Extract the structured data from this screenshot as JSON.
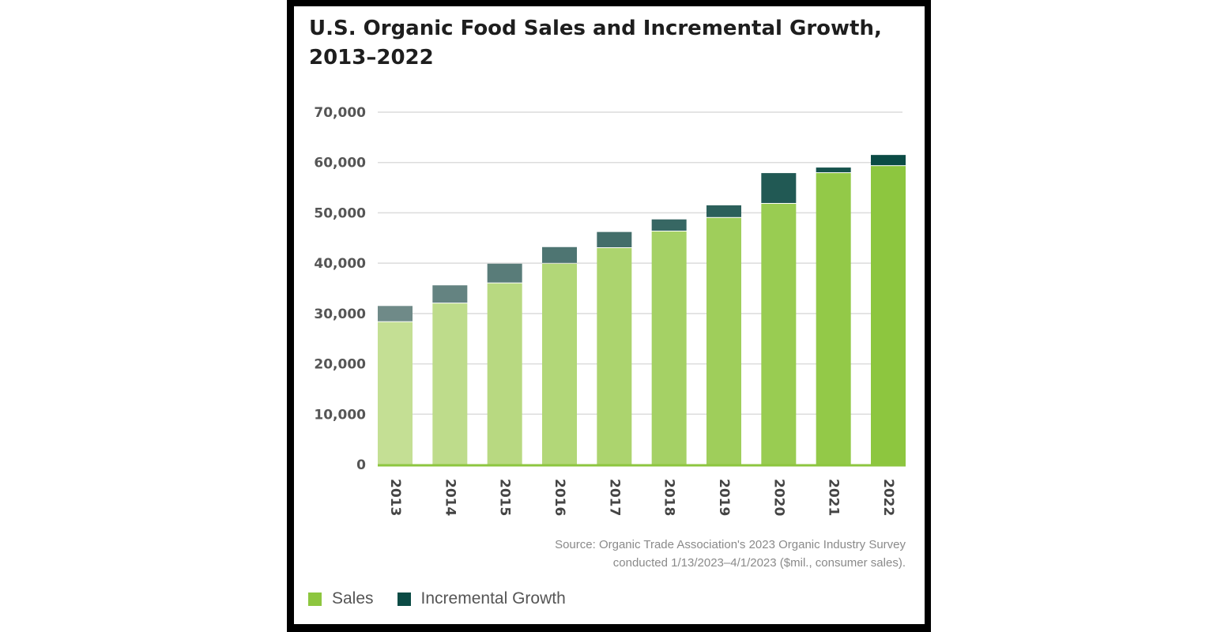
{
  "chart_data": {
    "type": "bar",
    "stacked": true,
    "title": "U.S. Organic Food Sales and Incremental Growth, 2013–2022",
    "xlabel": "",
    "ylabel": "",
    "categories": [
      "2013",
      "2014",
      "2015",
      "2016",
      "2017",
      "2018",
      "2019",
      "2020",
      "2021",
      "2022"
    ],
    "series": [
      {
        "name": "Sales",
        "values": [
          28300,
          32000,
          36000,
          39900,
          43000,
          46300,
          49000,
          51800,
          57900,
          59300
        ]
      },
      {
        "name": "Incremental Growth",
        "values": [
          3200,
          3600,
          3900,
          3300,
          3200,
          2400,
          2500,
          6100,
          1100,
          2200
        ]
      }
    ],
    "ylim": [
      0,
      70000
    ],
    "yticks": [
      "0",
      "10,000",
      "20,000",
      "30,000",
      "40,000",
      "50,000",
      "60,000",
      "70,000"
    ],
    "grid": true,
    "legend_placement": "bottom-left",
    "source": [
      "Source: Organic Trade Association's 2023 Organic Industry Survey",
      "conducted 1/13/2023–4/1/2023 ($mil., consumer sales)."
    ],
    "colors": {
      "sales_light": "#c4df94",
      "sales_dark": "#8dc63f",
      "growth_light": "#6f8a88",
      "growth_dark": "#0b4b45",
      "legend_sales": "#8dc63f",
      "legend_growth": "#0b4b45"
    }
  }
}
